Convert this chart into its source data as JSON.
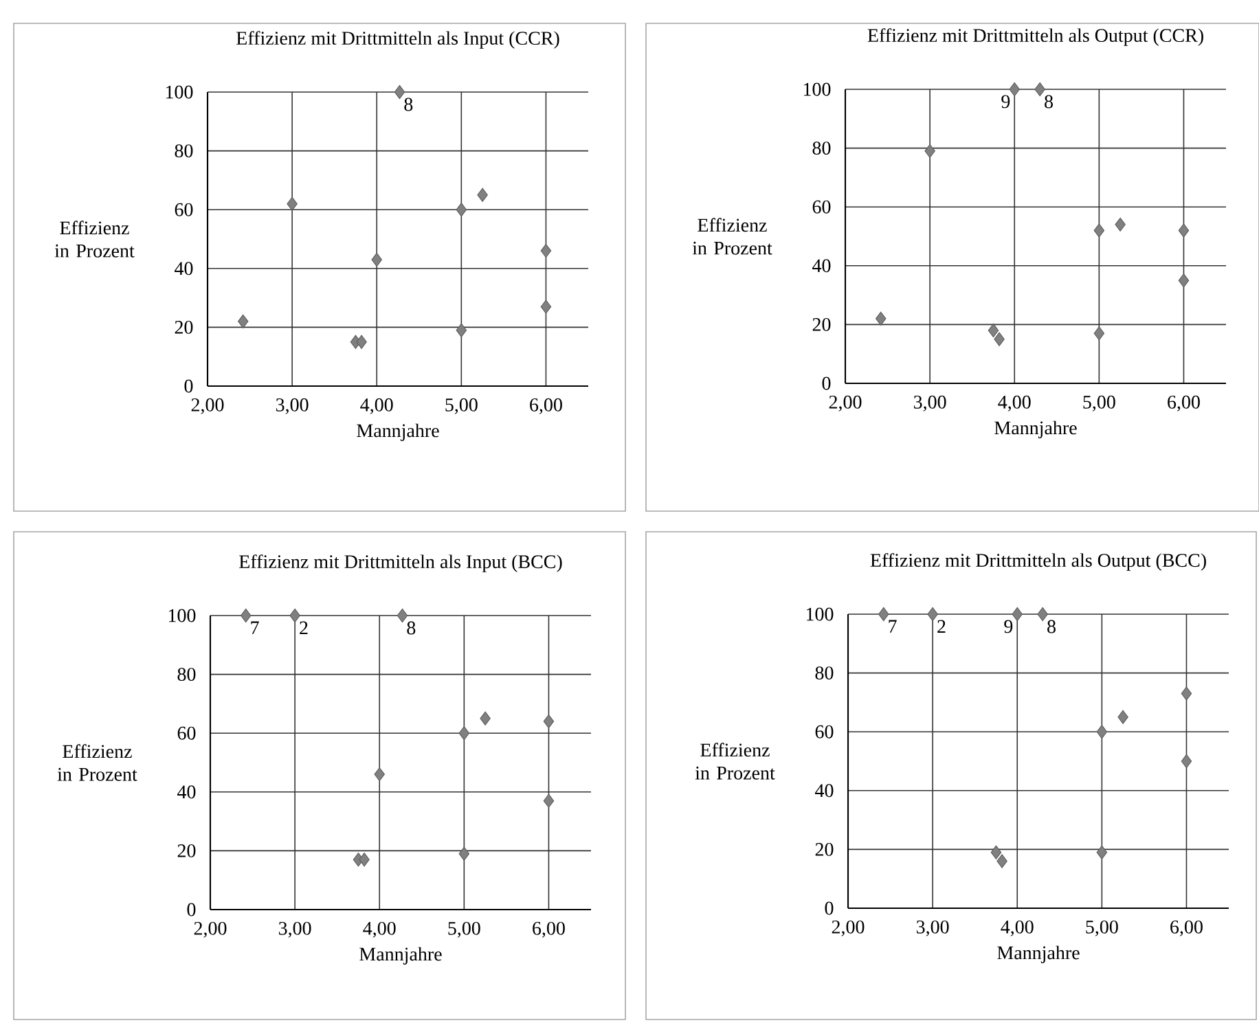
{
  "chart_data": [
    {
      "type": "scatter",
      "title": "Effizienz mit Drittmitteln als Input (CCR)",
      "xlabel": "Mannjahre",
      "ylabel": "Effizienz in Prozent",
      "color": "#808080",
      "marker": "diamond",
      "grid": true,
      "x": [
        2.42,
        3.0,
        3.75,
        3.82,
        4.0,
        4.27,
        5.0,
        5.25,
        5.0,
        6.0,
        6.0
      ],
      "values": [
        22,
        62,
        15,
        15,
        43,
        100,
        60,
        65,
        19,
        46,
        27
      ],
      "xlim": [
        2,
        6.5
      ],
      "ylim": [
        0,
        100
      ],
      "xticks": [
        {
          "value": 2,
          "label": "2,00"
        },
        {
          "value": 3,
          "label": "3,00"
        },
        {
          "value": 4,
          "label": "4,00"
        },
        {
          "value": 5,
          "label": "5,00"
        },
        {
          "value": 6,
          "label": "6,00"
        }
      ],
      "yticks": [
        0,
        20,
        40,
        60,
        80,
        100
      ],
      "annotations": [
        {
          "text": "8",
          "x": 4.27,
          "y": 100
        }
      ]
    },
    {
      "type": "scatter",
      "title": "Effizienz mit Drittmitteln als Output (CCR)",
      "xlabel": "Mannjahre",
      "ylabel": "Effizienz in Prozent",
      "color": "#808080",
      "marker": "diamond",
      "grid": true,
      "x": [
        2.42,
        3.0,
        3.75,
        3.82,
        4.0,
        4.3,
        5.0,
        5.25,
        5.0,
        6.0,
        6.0
      ],
      "values": [
        22,
        79,
        18,
        15,
        100,
        100,
        52,
        54,
        17,
        52,
        35
      ],
      "xlim": [
        2,
        6.5
      ],
      "ylim": [
        0,
        100
      ],
      "xticks": [
        {
          "value": 2,
          "label": "2,00"
        },
        {
          "value": 3,
          "label": "3,00"
        },
        {
          "value": 4,
          "label": "4,00"
        },
        {
          "value": 5,
          "label": "5,00"
        },
        {
          "value": 6,
          "label": "6,00"
        }
      ],
      "yticks": [
        0,
        20,
        40,
        60,
        80,
        100
      ],
      "annotations": [
        {
          "text": "9",
          "x": 4.0,
          "y": 100
        },
        {
          "text": "8",
          "x": 4.3,
          "y": 100
        }
      ]
    },
    {
      "type": "scatter",
      "title": "Effizienz mit Drittmitteln als Input (BCC)",
      "xlabel": "Mannjahre",
      "ylabel": "Effizienz in Prozent",
      "color": "#808080",
      "marker": "diamond",
      "grid": true,
      "x": [
        2.42,
        3.0,
        3.75,
        3.82,
        4.0,
        4.27,
        5.0,
        5.25,
        5.0,
        6.0,
        6.0
      ],
      "values": [
        100,
        100,
        17,
        17,
        46,
        100,
        60,
        65,
        19,
        64,
        37
      ],
      "xlim": [
        2,
        6.5
      ],
      "ylim": [
        0,
        100
      ],
      "xticks": [
        {
          "value": 2,
          "label": "2,00"
        },
        {
          "value": 3,
          "label": "3,00"
        },
        {
          "value": 4,
          "label": "4,00"
        },
        {
          "value": 5,
          "label": "5,00"
        },
        {
          "value": 6,
          "label": "6,00"
        }
      ],
      "yticks": [
        0,
        20,
        40,
        60,
        80,
        100
      ],
      "annotations": [
        {
          "text": "7",
          "x": 2.42,
          "y": 100
        },
        {
          "text": "2",
          "x": 3.0,
          "y": 100
        },
        {
          "text": "8",
          "x": 4.27,
          "y": 100
        }
      ]
    },
    {
      "type": "scatter",
      "title": "Effizienz mit Drittmitteln als Output (BCC)",
      "xlabel": "Mannjahre",
      "ylabel": "Effizienz in Prozent",
      "color": "#808080",
      "marker": "diamond",
      "grid": true,
      "x": [
        2.42,
        3.0,
        3.75,
        3.82,
        4.0,
        4.3,
        5.0,
        5.25,
        5.0,
        6.0,
        6.0
      ],
      "values": [
        100,
        100,
        19,
        16,
        100,
        100,
        60,
        65,
        19,
        73,
        50
      ],
      "xlim": [
        2,
        6.5
      ],
      "ylim": [
        0,
        100
      ],
      "xticks": [
        {
          "value": 2,
          "label": "2,00"
        },
        {
          "value": 3,
          "label": "3,00"
        },
        {
          "value": 4,
          "label": "4,00"
        },
        {
          "value": 5,
          "label": "5,00"
        },
        {
          "value": 6,
          "label": "6,00"
        }
      ],
      "yticks": [
        0,
        20,
        40,
        60,
        80,
        100
      ],
      "annotations": [
        {
          "text": "7",
          "x": 2.42,
          "y": 100
        },
        {
          "text": "2",
          "x": 3.0,
          "y": 100
        },
        {
          "text": "9",
          "x": 4.0,
          "y": 100
        },
        {
          "text": "8",
          "x": 4.3,
          "y": 100
        }
      ]
    }
  ]
}
